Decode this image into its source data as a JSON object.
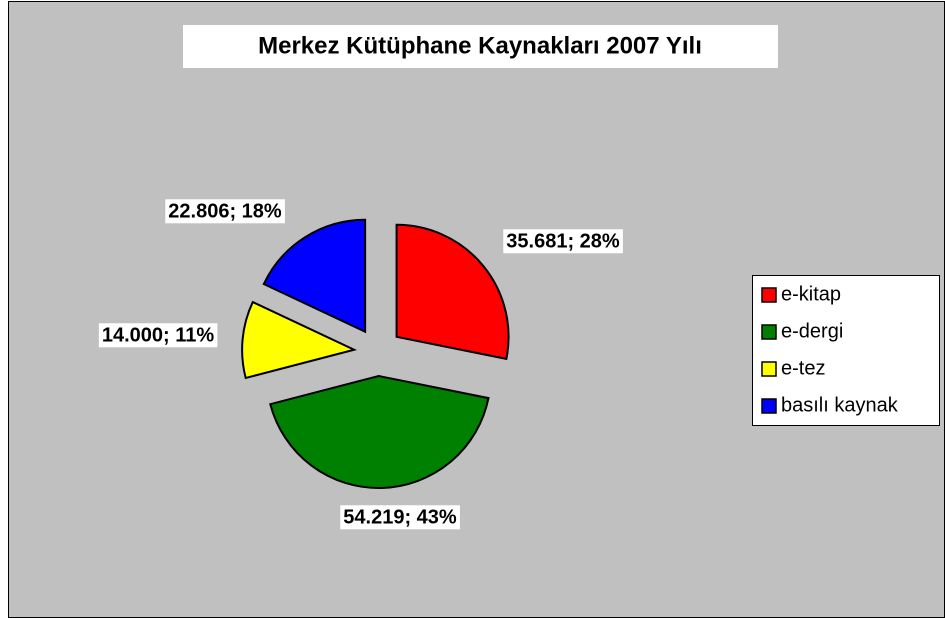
{
  "chart_data": {
    "type": "pie",
    "title": "Merkez Kütüphane Kaynakları 2007 Yılı",
    "categories": [
      "e-kitap",
      "e-dergi",
      "e-tez",
      "basılı kaynak"
    ],
    "values": [
      35681,
      54219,
      14000,
      22806
    ],
    "value_labels": [
      "35.681; 28%",
      "54.219; 43%",
      "14.000; 11%",
      "22.806; 18%"
    ],
    "colors": [
      "#ff0000",
      "#008000",
      "#ffff00",
      "#0000ff"
    ],
    "legend": "right"
  }
}
